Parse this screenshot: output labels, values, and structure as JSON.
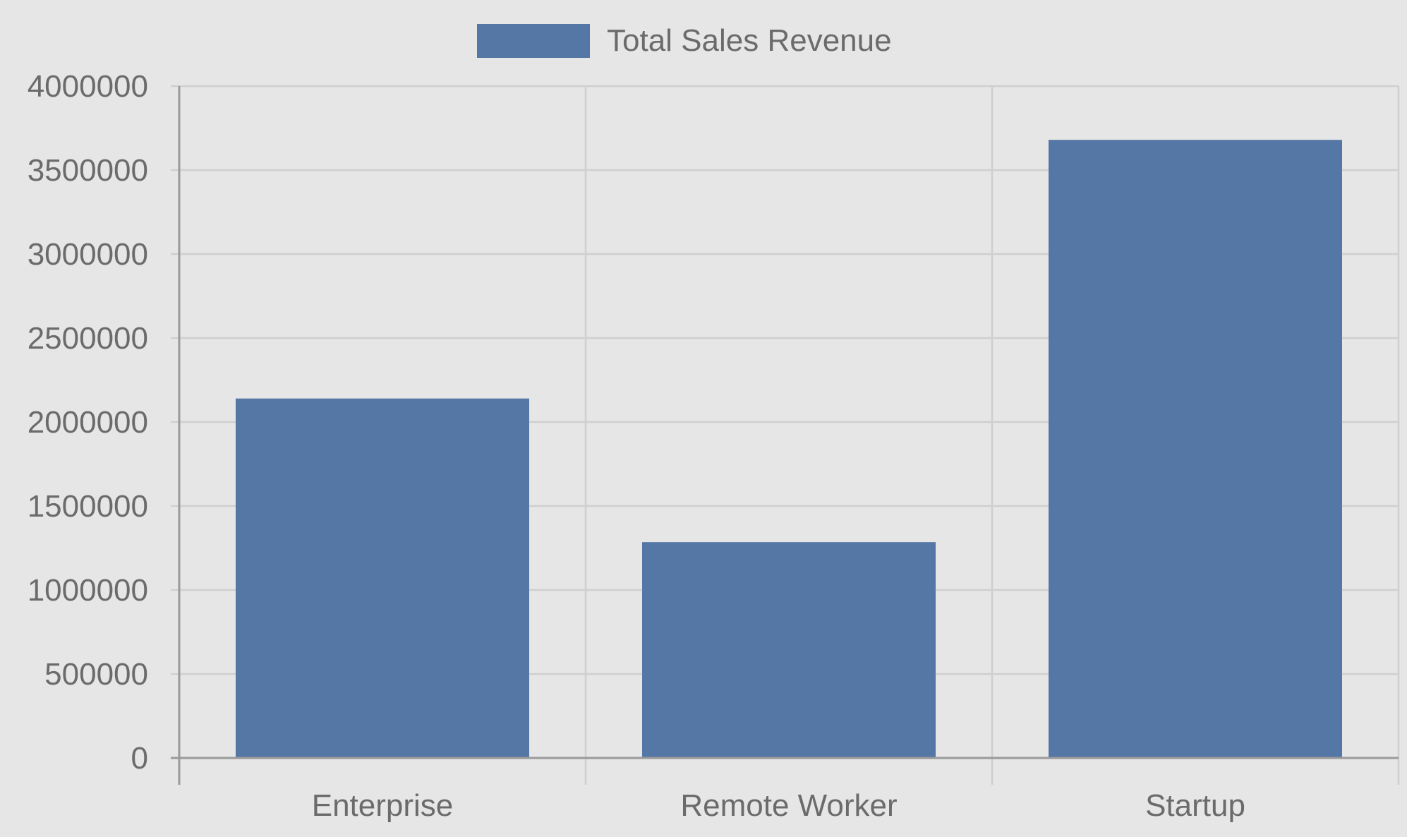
{
  "chart_data": {
    "type": "bar",
    "categories": [
      "Enterprise",
      "Remote Worker",
      "Startup"
    ],
    "series": [
      {
        "name": "Total Sales Revenue",
        "values": [
          2140000,
          1285000,
          3680000
        ],
        "color": "#5577a5"
      }
    ],
    "ylim": [
      0,
      4000000
    ],
    "yticks": [
      "0",
      "500000",
      "1000000",
      "1500000",
      "2000000",
      "2500000",
      "3000000",
      "3500000",
      "4000000"
    ],
    "grid": true,
    "legend_position": "top-center",
    "colors": {
      "background": "#e6e6e6",
      "grid": "#cfcfcf",
      "axis": "#9a9a9a",
      "text": "#6b6b6b"
    }
  }
}
